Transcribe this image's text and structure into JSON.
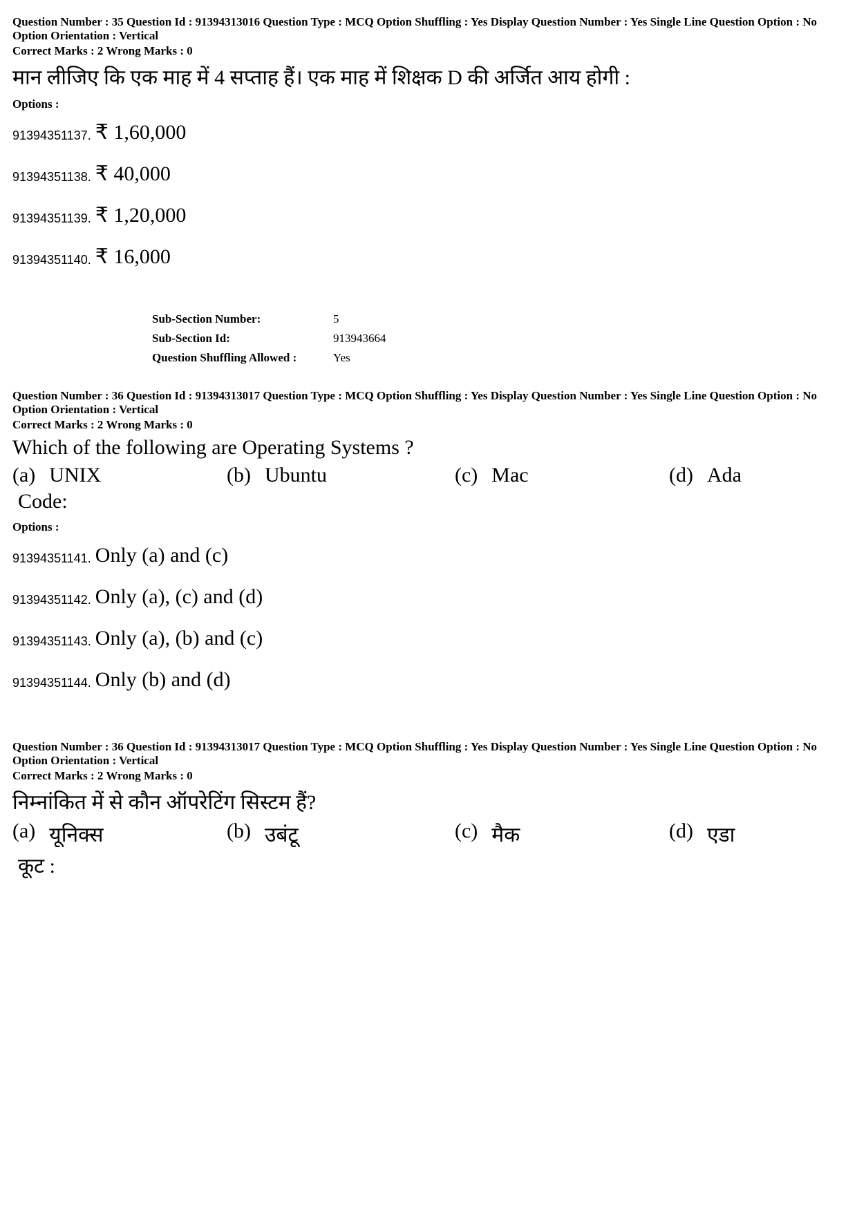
{
  "q35": {
    "meta1": "Question Number : 35  Question Id : 91394313016  Question Type : MCQ  Option Shuffling : Yes  Display Question Number : Yes  Single Line Question Option : No  Option Orientation : Vertical",
    "marks": "Correct Marks : 2  Wrong Marks : 0",
    "text": "मान लीजिए कि एक माह में 4 सप्ताह हैं।  एक माह में शिक्षक D की अर्जित आय होगी :",
    "options_label": "Options :",
    "options": [
      {
        "id": "91394351137.",
        "text": "₹ 1,60,000"
      },
      {
        "id": "91394351138.",
        "text": "₹ 40,000"
      },
      {
        "id": "91394351139.",
        "text": "₹ 1,20,000"
      },
      {
        "id": "91394351140.",
        "text": "₹ 16,000"
      }
    ]
  },
  "subsection": {
    "rows": [
      {
        "label": "Sub-Section Number:",
        "value": "5"
      },
      {
        "label": "Sub-Section Id:",
        "value": "913943664"
      },
      {
        "label": "Question Shuffling Allowed :",
        "value": "Yes"
      }
    ]
  },
  "q36a": {
    "meta1": "Question Number : 36  Question Id : 91394313017  Question Type : MCQ  Option Shuffling : Yes  Display Question Number : Yes  Single Line Question Option : No  Option Orientation : Vertical",
    "marks": "Correct Marks : 2  Wrong Marks : 0",
    "text": "Which of the following are Operating Systems ?",
    "choices": [
      {
        "k": "(a)",
        "v": "UNIX"
      },
      {
        "k": "(b)",
        "v": "Ubuntu"
      },
      {
        "k": "(c)",
        "v": "Mac"
      },
      {
        "k": "(d)",
        "v": "Ada"
      }
    ],
    "code": "Code:",
    "options_label": "Options :",
    "options": [
      {
        "id": "91394351141.",
        "text": "Only (a) and (c)"
      },
      {
        "id": "91394351142.",
        "text": "Only (a), (c) and (d)"
      },
      {
        "id": "91394351143.",
        "text": "Only (a), (b) and (c)"
      },
      {
        "id": "91394351144.",
        "text": "Only (b) and (d)"
      }
    ]
  },
  "q36b": {
    "meta1": "Question Number : 36  Question Id : 91394313017  Question Type : MCQ  Option Shuffling : Yes  Display Question Number : Yes  Single Line Question Option : No  Option Orientation : Vertical",
    "marks": "Correct Marks : 2  Wrong Marks : 0",
    "text": "निम्नांकित में से कौन ऑपरेटिंग सिस्टम हैं?",
    "choices": [
      {
        "k": "(a)",
        "v": "यूनिक्स"
      },
      {
        "k": "(b)",
        "v": "उबंटू"
      },
      {
        "k": "(c)",
        "v": "मैक"
      },
      {
        "k": "(d)",
        "v": "एडा"
      }
    ],
    "code": "कूट :"
  }
}
